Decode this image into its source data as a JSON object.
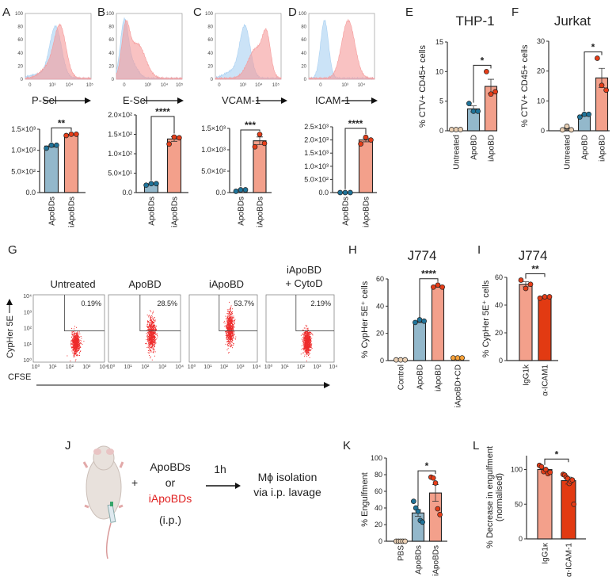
{
  "panel_labels": {
    "A": "A",
    "B": "B",
    "C": "C",
    "D": "D",
    "E": "E",
    "F": "F",
    "G": "G",
    "H": "H",
    "I": "I",
    "J": "J",
    "K": "K",
    "L": "L"
  },
  "colors": {
    "apo_bar": "#93b8cb",
    "apo_dot": "#1f7399",
    "iapo_bar": "#f3a08b",
    "iapo_dot": "#e63d18",
    "untreated": "#ead0b4",
    "cytod": "#f7a23a",
    "anti_icam_bar": "#e23a12",
    "hist_blue": "#a9d0f2",
    "hist_red": "#f59a9a",
    "dot_red": "#ee2b2b"
  },
  "diagram": {
    "plus": "+",
    "line1": "ApoBDs",
    "line2": "or",
    "line3": "iApoBDs",
    "line4": "(i.p.)",
    "time": "1h",
    "result1": "Mϕ isolation",
    "result2": "via i.p. lavage"
  },
  "flow": {
    "xlabel": "CFSE",
    "ylabel": "CypHer 5E",
    "xticks": [
      "10⁰",
      "10¹",
      "10²",
      "10³",
      "10⁴"
    ],
    "yticks": [
      "10⁰",
      "10¹",
      "10²",
      "10³",
      "10⁴"
    ],
    "panels": [
      {
        "title": "Untreated",
        "title2": "",
        "percent": "0.19%",
        "cypher_center_log": 1.1,
        "cypher_sd": 0.32
      },
      {
        "title": "ApoBD",
        "title2": "",
        "percent": "28.5%",
        "cypher_center_log": 1.65,
        "cypher_sd": 0.5
      },
      {
        "title": "iApoBD",
        "title2": "",
        "percent": "53.7%",
        "cypher_center_log": 2.0,
        "cypher_sd": 0.5
      },
      {
        "title": "iApoBD",
        "title2": "+ CytoD",
        "percent": "2.19%",
        "cypher_center_log": 1.15,
        "cypher_sd": 0.38
      }
    ]
  },
  "chart_data": [
    {
      "id": "A_hist",
      "type": "area",
      "xlabel": "P-Sel",
      "xrange": [
        0,
        100
      ],
      "ylim": [
        0,
        100
      ],
      "yticks": [
        "0",
        "20",
        "40",
        "60",
        "80",
        "100"
      ],
      "xticks": [
        {
          "v": 7,
          "label": "0"
        },
        {
          "v": 41,
          "label": "10³"
        },
        {
          "v": 67,
          "label": "10⁴"
        },
        {
          "v": 98,
          "label": "10⁵"
        }
      ],
      "series": [
        {
          "name": "ApoBDs",
          "color": "hist_blue",
          "components": [
            {
              "c": 46,
              "sd": 9,
              "h": 78
            },
            {
              "c": 20,
              "sd": 14,
              "h": 6
            }
          ]
        },
        {
          "name": "iApoBDs",
          "color": "hist_red",
          "components": [
            {
              "c": 53,
              "sd": 9,
              "h": 76
            },
            {
              "c": 35,
              "sd": 12,
              "h": 16
            }
          ]
        }
      ]
    },
    {
      "id": "B_hist",
      "type": "area",
      "xlabel": "E-Sel",
      "xrange": [
        0,
        100
      ],
      "ylim": [
        0,
        100
      ],
      "yticks": [
        "0",
        "20",
        "40",
        "60",
        "80",
        "100"
      ],
      "xticks": [
        {
          "v": 12,
          "label": "0"
        },
        {
          "v": 48,
          "label": "10³"
        },
        {
          "v": 73,
          "label": "10⁴"
        },
        {
          "v": 96,
          "label": "10⁵"
        }
      ],
      "series": [
        {
          "name": "ApoBDs",
          "color": "hist_blue",
          "components": [
            {
              "c": 12,
              "sd": 6,
              "h": 85
            },
            {
              "c": 25,
              "sd": 8,
              "h": 20
            }
          ]
        },
        {
          "name": "iApoBDs",
          "color": "hist_red",
          "components": [
            {
              "c": 14,
              "sd": 6,
              "h": 70
            },
            {
              "c": 32,
              "sd": 12,
              "h": 52
            }
          ]
        }
      ]
    },
    {
      "id": "C_hist",
      "type": "area",
      "xlabel": "VCAM-1",
      "xrange": [
        0,
        100
      ],
      "ylim": [
        0,
        100
      ],
      "yticks": [
        "0",
        "20",
        "40",
        "60",
        "80",
        "100"
      ],
      "xticks": [
        {
          "v": 6,
          "label": "0"
        },
        {
          "v": 42,
          "label": "10³"
        },
        {
          "v": 66,
          "label": "10⁴"
        },
        {
          "v": 92,
          "label": "10⁵"
        }
      ],
      "series": [
        {
          "name": "ApoBDs",
          "color": "hist_blue",
          "components": [
            {
              "c": 45,
              "sd": 8,
              "h": 78
            },
            {
              "c": 25,
              "sd": 12,
              "h": 10
            }
          ]
        },
        {
          "name": "iApoBDs",
          "color": "hist_red",
          "components": [
            {
              "c": 78,
              "sd": 6,
              "h": 55
            },
            {
              "c": 62,
              "sd": 12,
              "h": 45
            }
          ]
        }
      ]
    },
    {
      "id": "D_hist",
      "type": "area",
      "xlabel": "ICAM-1",
      "xrange": [
        0,
        100
      ],
      "ylim": [
        0,
        100
      ],
      "yticks": [
        "0",
        "20",
        "40",
        "60",
        "80",
        "100"
      ],
      "xticks": [
        {
          "v": 18,
          "label": "0"
        },
        {
          "v": 55,
          "label": "10³"
        },
        {
          "v": 80,
          "label": "10⁴"
        }
      ],
      "series": [
        {
          "name": "ApoBDs",
          "color": "hist_blue",
          "components": [
            {
              "c": 24,
              "sd": 6,
              "h": 88
            }
          ]
        },
        {
          "name": "iApoBDs",
          "color": "hist_red",
          "components": [
            {
              "c": 60,
              "sd": 10,
              "h": 88
            }
          ]
        }
      ]
    },
    {
      "id": "A_bar",
      "type": "bar",
      "title": "",
      "ylabel": "",
      "ylim": [
        0,
        1500
      ],
      "yticks": [
        {
          "v": 0,
          "label": "0.0"
        },
        {
          "v": 500,
          "label": "5.0×10²"
        },
        {
          "v": 1000,
          "label": "1.0×10³"
        },
        {
          "v": 1500,
          "label": "1.5×10³"
        }
      ],
      "categories": [
        "ApoBDs",
        "iApoBDs"
      ],
      "values": [
        1100,
        1370
      ],
      "errors": [
        25,
        10
      ],
      "points": [
        [
          1050,
          1120,
          1120
        ],
        [
          1350,
          1380,
          1380
        ]
      ],
      "bar_colors": [
        "apo_bar",
        "iapo_bar"
      ],
      "dot_colors": [
        "apo_dot",
        "iapo_dot"
      ],
      "sig": [
        {
          "from": 0,
          "to": 1,
          "label": "**"
        }
      ]
    },
    {
      "id": "B_bar",
      "type": "bar",
      "title": "",
      "ylabel": "",
      "ylim": [
        0,
        200
      ],
      "yticks": [
        {
          "v": 0,
          "label": "0.0"
        },
        {
          "v": 50,
          "label": "5.0×10¹"
        },
        {
          "v": 100,
          "label": "1.0×10²"
        },
        {
          "v": 150,
          "label": "1.5×10²"
        },
        {
          "v": 200,
          "label": "2.0×10²"
        }
      ],
      "categories": [
        "ApoBDs",
        "iApoBDs"
      ],
      "values": [
        22,
        138
      ],
      "errors": [
        1,
        6
      ],
      "points": [
        [
          19,
          23,
          23
        ],
        [
          125,
          143,
          141
        ]
      ],
      "bar_colors": [
        "apo_bar",
        "iapo_bar"
      ],
      "dot_colors": [
        "apo_dot",
        "iapo_dot"
      ],
      "sig": [
        {
          "from": 0,
          "to": 1,
          "label": "****"
        }
      ]
    },
    {
      "id": "C_bar",
      "type": "bar",
      "title": "",
      "ylabel": "",
      "ylim": [
        0,
        1500
      ],
      "yticks": [
        {
          "v": 0,
          "label": "0.0"
        },
        {
          "v": 500,
          "label": "5.0×10²"
        },
        {
          "v": 1000,
          "label": "1.0×10³"
        },
        {
          "v": 1500,
          "label": "1.5×10³"
        }
      ],
      "categories": [
        "ApoBDs",
        "iApoBDs"
      ],
      "values": [
        55,
        1210
      ],
      "errors": [
        15,
        90
      ],
      "points": [
        [
          30,
          65,
          65
        ],
        [
          1070,
          1360,
          1150
        ]
      ],
      "bar_colors": [
        "apo_bar",
        "iapo_bar"
      ],
      "dot_colors": [
        "apo_dot",
        "iapo_dot"
      ],
      "sig": [
        {
          "from": 0,
          "to": 1,
          "label": "***"
        }
      ]
    },
    {
      "id": "D_bar",
      "type": "bar",
      "title": "",
      "ylabel": "",
      "ylim": [
        0,
        2500
      ],
      "yticks": [
        {
          "v": 0,
          "label": "0.0"
        },
        {
          "v": 500,
          "label": "5.0×10²"
        },
        {
          "v": 1000,
          "label": "1.0×10³"
        },
        {
          "v": 1500,
          "label": "1.5×10³"
        },
        {
          "v": 2000,
          "label": "2.0×10³"
        },
        {
          "v": 2500,
          "label": "2.5×10³"
        }
      ],
      "categories": [
        "ApoBDs",
        "iApoBDs"
      ],
      "values": [
        5,
        2000
      ],
      "errors": [
        2,
        70
      ],
      "points": [
        [
          0,
          0,
          0
        ],
        [
          1850,
          2100,
          2000
        ]
      ],
      "bar_colors": [
        "apo_bar",
        "iapo_bar"
      ],
      "dot_colors": [
        "apo_dot",
        "iapo_dot"
      ],
      "sig": [
        {
          "from": 0,
          "to": 1,
          "label": "****"
        }
      ]
    },
    {
      "id": "E_bar",
      "type": "bar",
      "title": "THP-1",
      "ylabel": "% CTV+ CD45+ cells",
      "ylim": [
        0,
        15
      ],
      "yticks": [
        {
          "v": 0,
          "label": "0"
        },
        {
          "v": 5,
          "label": "5"
        },
        {
          "v": 10,
          "label": "10"
        },
        {
          "v": 15,
          "label": "15"
        }
      ],
      "categories": [
        "Untreated",
        "ApoBD",
        "iApoBD"
      ],
      "values": [
        0.2,
        3.7,
        7.5
      ],
      "errors": [
        0.05,
        0.5,
        1.2
      ],
      "points": [
        [
          0.2,
          0.2,
          0.2
        ],
        [
          4.6,
          3.3,
          3.3
        ],
        [
          10,
          6.2,
          6.6
        ]
      ],
      "bar_colors": [
        "untreated",
        "apo_bar",
        "iapo_bar"
      ],
      "dot_colors": [
        "untreated",
        "apo_dot",
        "iapo_dot"
      ],
      "sig": [
        {
          "from": 1,
          "to": 2,
          "label": "*"
        }
      ]
    },
    {
      "id": "F_bar",
      "type": "bar",
      "title": "Jurkat",
      "ylabel": "% CTV+ CD45+ cells",
      "ylim": [
        0,
        30
      ],
      "yticks": [
        {
          "v": 0,
          "label": "0"
        },
        {
          "v": 10,
          "label": "10"
        },
        {
          "v": 20,
          "label": "20"
        },
        {
          "v": 30,
          "label": "30"
        }
      ],
      "categories": [
        "Untreated",
        "ApoBD",
        "iApoBD"
      ],
      "values": [
        0.7,
        5.2,
        17.7
      ],
      "errors": [
        0.4,
        0.3,
        3.2
      ],
      "points": [
        [
          0.3,
          1.5,
          0.3
        ],
        [
          4.6,
          5.5,
          5.5
        ],
        [
          24.3,
          15.2,
          13.6
        ]
      ],
      "bar_colors": [
        "untreated",
        "apo_bar",
        "iapo_bar"
      ],
      "dot_colors": [
        "untreated",
        "apo_dot",
        "iapo_dot"
      ],
      "sig": [
        {
          "from": 1,
          "to": 2,
          "label": "*"
        }
      ]
    },
    {
      "id": "H_bar",
      "type": "bar",
      "title": "J774",
      "ylabel": "% CypHer 5E⁺ cells",
      "ylim": [
        0,
        60
      ],
      "yticks": [
        {
          "v": 0,
          "label": "0"
        },
        {
          "v": 20,
          "label": "20"
        },
        {
          "v": 40,
          "label": "40"
        },
        {
          "v": 60,
          "label": "60"
        }
      ],
      "categories": [
        "Control",
        "ApoBD",
        "iApoBD",
        "iApoBD+CD"
      ],
      "values": [
        0.5,
        28.5,
        54.5,
        2
      ],
      "errors": [
        0.1,
        0.6,
        0.5,
        0.2
      ],
      "points": [
        [
          0.5,
          0.5,
          0.5
        ],
        [
          28,
          30,
          29
        ],
        [
          54,
          55.5,
          54
        ],
        [
          2,
          2,
          2
        ]
      ],
      "bar_colors": [
        "untreated",
        "apo_bar",
        "iapo_bar",
        "cytod"
      ],
      "dot_colors": [
        "untreated",
        "apo_dot",
        "iapo_dot",
        "cytod"
      ],
      "sig": [
        {
          "from": 1,
          "to": 2,
          "label": "****"
        }
      ]
    },
    {
      "id": "I_bar",
      "type": "bar",
      "title": "J774",
      "ylabel": "% CypHer 5E⁺ cells",
      "ylim": [
        0,
        60
      ],
      "yticks": [
        {
          "v": 0,
          "label": "0"
        },
        {
          "v": 20,
          "label": "20"
        },
        {
          "v": 40,
          "label": "40"
        },
        {
          "v": 60,
          "label": "60"
        }
      ],
      "categories": [
        "IgG1k",
        "α-ICAM1"
      ],
      "values": [
        55,
        46
      ],
      "errors": [
        1.8,
        0.3
      ],
      "points": [
        [
          58,
          52,
          55
        ],
        [
          45,
          46,
          46
        ]
      ],
      "bar_colors": [
        "iapo_bar",
        "anti_icam_bar"
      ],
      "dot_colors": [
        "iapo_dot",
        "iapo_dot"
      ],
      "sig": [
        {
          "from": 0,
          "to": 1,
          "label": "**"
        }
      ]
    },
    {
      "id": "K_bar",
      "type": "bar",
      "title": "",
      "ylabel": "% Engulfment",
      "ylim": [
        0,
        100
      ],
      "yticks": [
        {
          "v": 0,
          "label": "0"
        },
        {
          "v": 20,
          "label": "20"
        },
        {
          "v": 40,
          "label": "40"
        },
        {
          "v": 60,
          "label": "60"
        },
        {
          "v": 80,
          "label": "80"
        },
        {
          "v": 100,
          "label": "100"
        }
      ],
      "categories": [
        "PBS",
        "ApoBDs",
        "iApoBDs"
      ],
      "values": [
        0,
        34,
        58
      ],
      "errors": [
        0.2,
        4,
        10
      ],
      "points": [
        [
          0,
          0,
          0,
          0,
          0
        ],
        [
          48,
          40,
          36,
          25,
          23
        ],
        [
          77,
          76,
          70,
          39,
          32
        ]
      ],
      "bar_colors": [
        "untreated",
        "apo_bar",
        "iapo_bar"
      ],
      "dot_colors": [
        "untreated",
        "apo_dot",
        "iapo_dot"
      ],
      "sig": [
        {
          "from": 1,
          "to": 2,
          "label": "*"
        }
      ]
    },
    {
      "id": "L_bar",
      "type": "bar",
      "title": "",
      "ylabel": "% Decrease in engulfment",
      "ylabel2": "(normalised)",
      "ylim": [
        0,
        120
      ],
      "yticks": [
        {
          "v": 0,
          "label": "0"
        },
        {
          "v": 50,
          "label": "50"
        },
        {
          "v": 100,
          "label": "100"
        }
      ],
      "categories": [
        "IgG1κ",
        "α-ICAM-1"
      ],
      "values": [
        100,
        84
      ],
      "errors": [
        2,
        5
      ],
      "points": [
        [
          106,
          104,
          97,
          100,
          94,
          96
        ],
        [
          93,
          92,
          89,
          87,
          80,
          83,
          85,
          50
        ]
      ],
      "bar_colors": [
        "iapo_bar",
        "anti_icam_bar"
      ],
      "dot_colors": [
        "iapo_dot",
        "iapo_dot"
      ],
      "sig": [
        {
          "from": 0,
          "to": 1,
          "label": "*"
        }
      ]
    }
  ]
}
